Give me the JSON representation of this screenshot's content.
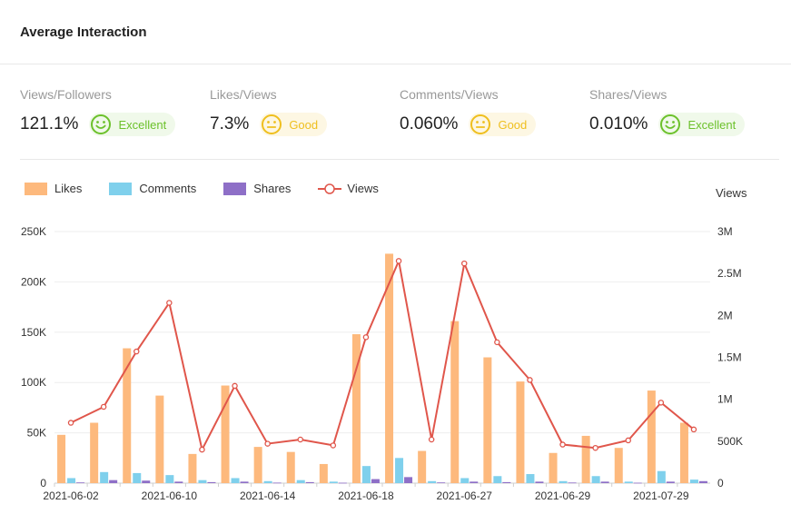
{
  "header": {
    "title": "Average Interaction"
  },
  "metrics": [
    {
      "label": "Views/Followers",
      "value": "121.1%",
      "rating": "Excellent",
      "mood": "excellent-smile-icon"
    },
    {
      "label": "Likes/Views",
      "value": "7.3%",
      "rating": "Good",
      "mood": "neutral-face-icon"
    },
    {
      "label": "Comments/Views",
      "value": "0.060%",
      "rating": "Good",
      "mood": "neutral-face-icon"
    },
    {
      "label": "Shares/Views",
      "value": "0.010%",
      "rating": "Excellent",
      "mood": "excellent-smile-icon"
    }
  ],
  "colors": {
    "likes": "#fdb97d",
    "comments": "#7fd0ec",
    "shares": "#8e6fc7",
    "views": "#e0564b",
    "excellent": "#6cc12b",
    "good": "#efbf1e"
  },
  "chart_data": {
    "type": "bar",
    "title": "",
    "legend": [
      "Likes",
      "Comments",
      "Shares",
      "Views"
    ],
    "legend_position": "top-left",
    "y_left": {
      "ticks": [
        "0",
        "50K",
        "100K",
        "150K",
        "200K",
        "250K"
      ],
      "ylim": [
        0,
        250000
      ]
    },
    "y_right": {
      "label": "Views",
      "ticks": [
        "0",
        "500K",
        "1M",
        "1.5M",
        "2M",
        "2.5M",
        "3M"
      ],
      "ylim": [
        0,
        3000000
      ]
    },
    "x_tick_labels": [
      "2021-06-02",
      "2021-06-10",
      "2021-06-14",
      "2021-06-18",
      "2021-06-27",
      "2021-06-29",
      "2021-07-29"
    ],
    "series": [
      {
        "name": "Likes",
        "type": "bar",
        "axis": "left",
        "values": [
          48000,
          60000,
          134000,
          87000,
          29000,
          97000,
          36000,
          31000,
          19000,
          148000,
          228000,
          32000,
          161000,
          125000,
          101000,
          30000,
          47000,
          35000,
          92000,
          60000
        ]
      },
      {
        "name": "Comments",
        "type": "bar",
        "axis": "left",
        "values": [
          5000,
          11000,
          10000,
          8000,
          3000,
          5000,
          2000,
          3000,
          1500,
          17000,
          25000,
          2000,
          5000,
          7000,
          9000,
          2000,
          7000,
          1500,
          12000,
          3500
        ]
      },
      {
        "name": "Shares",
        "type": "bar",
        "axis": "left",
        "values": [
          700,
          3000,
          2500,
          1500,
          1000,
          1500,
          500,
          1000,
          400,
          4000,
          6000,
          700,
          1500,
          1000,
          1500,
          600,
          1500,
          400,
          1500,
          2000
        ]
      },
      {
        "name": "Views",
        "type": "line",
        "axis": "right",
        "values": [
          720000,
          910000,
          1570000,
          2150000,
          400000,
          1160000,
          470000,
          520000,
          450000,
          1740000,
          2650000,
          520000,
          2620000,
          1680000,
          1230000,
          460000,
          420000,
          510000,
          960000,
          640000
        ]
      }
    ]
  }
}
